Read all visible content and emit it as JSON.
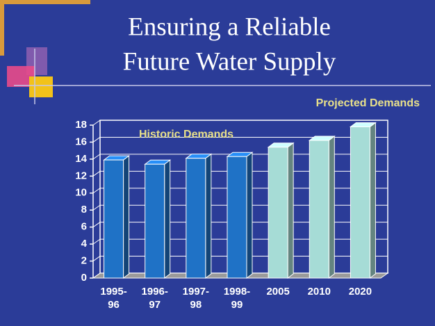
{
  "chart_data": {
    "type": "bar3d",
    "title": [
      "Ensuring a Reliable",
      "Future Water Supply"
    ],
    "annotations": [
      "Projected Demands",
      "Historic Demands"
    ],
    "categories": [
      "1995-96",
      "1996-97",
      "1997-98",
      "1998-99",
      "2005",
      "2010",
      "2020"
    ],
    "values": [
      13.9,
      13.4,
      14.1,
      14.3,
      15.4,
      16.2,
      17.8
    ],
    "colors": [
      "#1f72c6",
      "#1f72c6",
      "#1f72c6",
      "#1f72c6",
      "#a6dcd6",
      "#a6dcd6",
      "#a6dcd6"
    ],
    "ylim": [
      0,
      18
    ],
    "yticks": [
      0,
      2,
      4,
      6,
      8,
      10,
      12,
      14,
      16,
      18
    ],
    "grid": true
  }
}
